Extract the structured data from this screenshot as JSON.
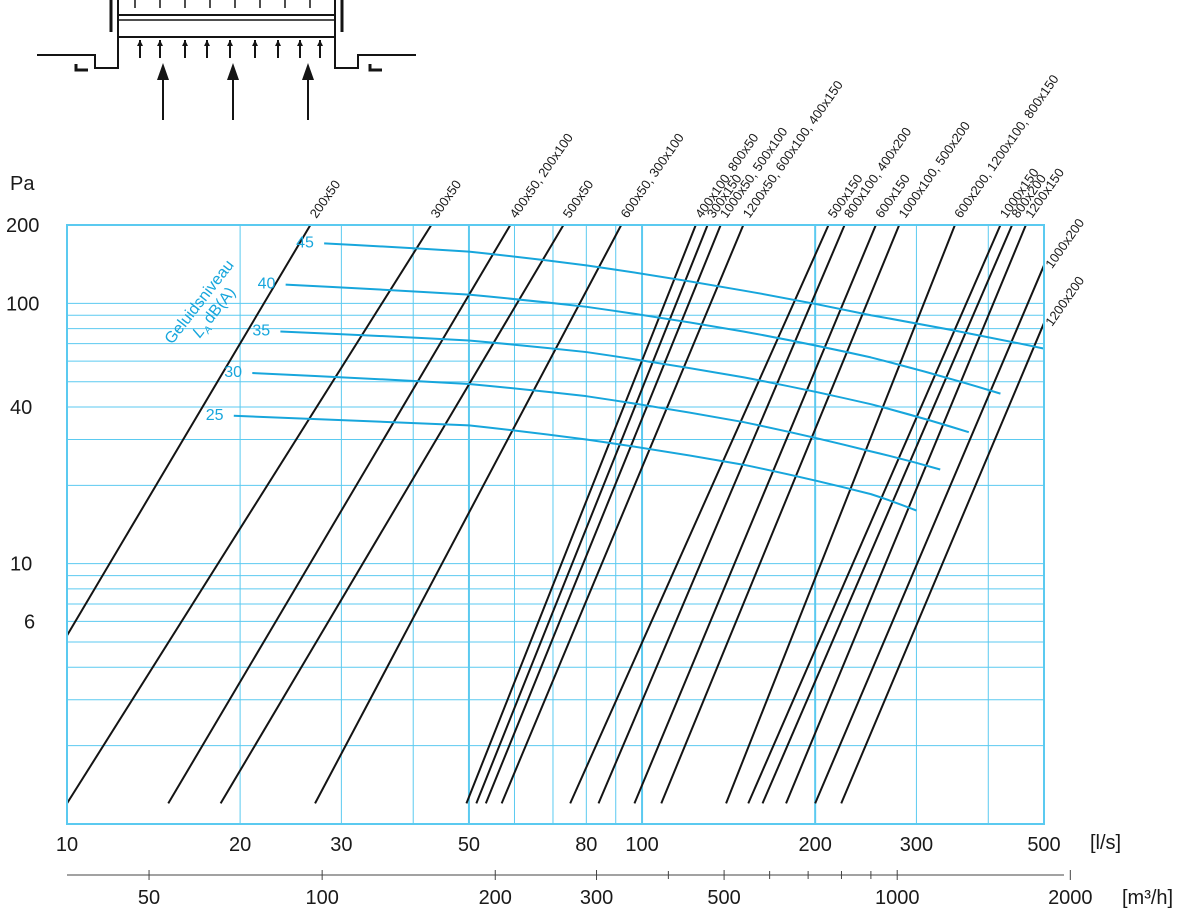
{
  "colors": {
    "grid": "#5bcaf0",
    "sound_curves": "#17a6dc",
    "duct_lines": "#141414"
  },
  "chart_data": {
    "type": "line",
    "x_scale": "log",
    "y_scale": "log",
    "xlim": [
      10,
      500
    ],
    "ylim": [
      1,
      200
    ],
    "grid": true,
    "x_tick_labels": [
      "10",
      "20",
      "30",
      "50",
      "80",
      "100",
      "200",
      "300",
      "500"
    ],
    "x_unit": "[l/s]",
    "x2_tick_labels": [
      "50",
      "100",
      "200",
      "300",
      "500",
      "1000",
      "2000"
    ],
    "x2_unit": "[m³/h]",
    "y_tick_labels": [
      "200",
      "100",
      "40",
      "10",
      "6"
    ],
    "y_unit": "Pa",
    "sound_level_title": "Geluidsniveau",
    "sound_level_subtitle": "L",
    "sound_level_subscript": "A",
    "sound_level_unit": "dB(A)",
    "duct_series": [
      {
        "name": "200x50",
        "points": [
          [
            10,
            5.3
          ],
          [
            26.5,
            200
          ]
        ]
      },
      {
        "name": "300x50",
        "points": [
          [
            10,
            1.2
          ],
          [
            43,
            200
          ]
        ]
      },
      {
        "name": "400x50, 200x100",
        "points": [
          [
            15,
            1.2
          ],
          [
            59,
            200
          ]
        ]
      },
      {
        "name": "500x50",
        "points": [
          [
            18.5,
            1.2
          ],
          [
            73,
            200
          ]
        ]
      },
      {
        "name": "600x50, 300x100",
        "points": [
          [
            27,
            1.2
          ],
          [
            92,
            200
          ]
        ]
      },
      {
        "name": "400x100, 800x50",
        "points": [
          [
            49.5,
            1.2
          ],
          [
            124,
            200
          ]
        ]
      },
      {
        "name": "300x150",
        "points": [
          [
            51.5,
            1.2
          ],
          [
            130,
            200
          ]
        ]
      },
      {
        "name": "1000x50, 500x100",
        "points": [
          [
            53.5,
            1.2
          ],
          [
            137,
            200
          ]
        ]
      },
      {
        "name": "1200x50, 600x100, 400x150",
        "points": [
          [
            57,
            1.2
          ],
          [
            150,
            200
          ]
        ]
      },
      {
        "name": "500x150",
        "points": [
          [
            75,
            1.2
          ],
          [
            211,
            200
          ]
        ]
      },
      {
        "name": "800x100, 400x200",
        "points": [
          [
            84,
            1.2
          ],
          [
            225,
            200
          ]
        ]
      },
      {
        "name": "600x150",
        "points": [
          [
            97,
            1.2
          ],
          [
            255,
            200
          ]
        ]
      },
      {
        "name": "1000x100, 500x200",
        "points": [
          [
            108,
            1.2
          ],
          [
            280,
            200
          ]
        ]
      },
      {
        "name": "600x200, 1200x100, 800x150",
        "points": [
          [
            140,
            1.2
          ],
          [
            350,
            200
          ]
        ]
      },
      {
        "name": "1000x150",
        "points": [
          [
            153,
            1.2
          ],
          [
            420,
            200
          ]
        ]
      },
      {
        "name": "800x200",
        "points": [
          [
            162,
            1.2
          ],
          [
            440,
            200
          ]
        ]
      },
      {
        "name": "1200x150",
        "points": [
          [
            178,
            1.2
          ],
          [
            465,
            200
          ]
        ]
      },
      {
        "name": "1000x200",
        "points": [
          [
            200,
            1.2
          ],
          [
            500,
            140
          ]
        ]
      },
      {
        "name": "1200x200",
        "points": [
          [
            222,
            1.2
          ],
          [
            500,
            84
          ]
        ]
      }
    ],
    "sound_series": [
      {
        "name": "45",
        "points": [
          [
            28,
            170
          ],
          [
            50,
            158
          ],
          [
            80,
            140
          ],
          [
            150,
            112
          ],
          [
            250,
            90
          ],
          [
            500,
            67
          ]
        ]
      },
      {
        "name": "40",
        "points": [
          [
            24,
            118
          ],
          [
            50,
            108
          ],
          [
            80,
            97
          ],
          [
            150,
            78
          ],
          [
            250,
            62
          ],
          [
            420,
            45
          ]
        ]
      },
      {
        "name": "35",
        "points": [
          [
            23.5,
            78
          ],
          [
            50,
            72
          ],
          [
            80,
            65
          ],
          [
            150,
            52
          ],
          [
            250,
            41
          ],
          [
            370,
            32
          ]
        ]
      },
      {
        "name": "30",
        "points": [
          [
            21,
            54
          ],
          [
            50,
            49
          ],
          [
            80,
            44
          ],
          [
            150,
            35
          ],
          [
            250,
            27
          ],
          [
            330,
            23
          ]
        ]
      },
      {
        "name": "25",
        "points": [
          [
            19.5,
            37
          ],
          [
            50,
            34
          ],
          [
            80,
            30
          ],
          [
            150,
            24
          ],
          [
            250,
            18.5
          ],
          [
            300,
            16
          ]
        ]
      }
    ]
  }
}
